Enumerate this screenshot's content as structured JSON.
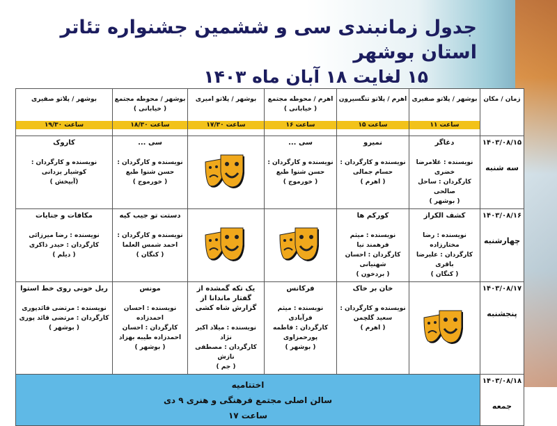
{
  "title": {
    "line1": "جدول زمانبندی سی و ششمین جشنواره تئاتر استان بوشهر",
    "line2": "۱۵ لغایت ۱۸ آبان ماه ۱۴۰۳"
  },
  "header": {
    "corner": "زمان / مکان",
    "columns": [
      {
        "place": "بوشهر / پلاتو صفیری",
        "sub": "",
        "time": "ساعت ۱۱"
      },
      {
        "place": "اهرم / پلاتو تنگسیرون",
        "sub": "",
        "time": "ساعت ۱۵"
      },
      {
        "place": "اهرم / محوطه مجتمع",
        "sub": "( خیابانی )",
        "time": "ساعت ۱۶"
      },
      {
        "place": "بوشهر / پلاتو امیری",
        "sub": "",
        "time": "ساعت ۱۷/۳۰"
      },
      {
        "place": "بوشهر / محوطه مجتمع",
        "sub": "( خیابانی )",
        "time": "ساعت ۱۸/۳۰"
      },
      {
        "place": "بوشهر / پلاتو صفیری",
        "sub": "",
        "time": "ساعت ۱۹/۳۰"
      }
    ]
  },
  "rows": [
    {
      "date": "۱۴۰۳/۰۸/۱۵",
      "day": "سه شنبه",
      "cells": [
        {
          "name": "دغاگر",
          "l1": "نویسنده : غلامرضا خضری",
          "l2": "کارگردان : ساحل صالحی",
          "l3": "( بوشهر )"
        },
        {
          "name": "نمیرو",
          "l1": "نویسنده و کارگردان :",
          "l2": "حسام جمالی",
          "l3": "( اهرم )"
        },
        {
          "name": "سی ...",
          "l1": "نویسنده و کارگردان :",
          "l2": "حسن شنوا طبع",
          "l3": "( خورموج )"
        },
        {
          "mask": true
        },
        {
          "name": "سی ...",
          "l1": "نویسنده و کارگردان :",
          "l2": "حسن شنوا طبع",
          "l3": "( خورموج )"
        },
        {
          "name": "کاروک",
          "l1": "نویسنده و کارگردان :",
          "l2": "کوشیار یزدانی",
          "l3": "(آبپخش )"
        }
      ]
    },
    {
      "date": "۱۴۰۳/۰۸/۱۶",
      "day": "چهارشنبه",
      "cells": [
        {
          "name": "کشف الکراز",
          "l1": "نویسنده : رضا مختارزاده",
          "l2": "کارگردان : علیرضا باقری",
          "l3": "( کنگان )"
        },
        {
          "name": "کورکم ها",
          "l1": "نویسنده : میثم فرهمند نیا",
          "l2": "کارگردان : احسان شهنیانی",
          "l3": "( بردخون )"
        },
        {
          "mask": true
        },
        {
          "mask": true
        },
        {
          "name": "دستت تو جیب کیه",
          "l1": "نویسنده و کارگردان :",
          "l2": "احمد شمس العلما",
          "l3": "( کنگان )"
        },
        {
          "name": "مکافات و جنایات",
          "l1": "نویسنده : رضا میرزائی",
          "l2": "کارگردان : حیدر ذاکری",
          "l3": "( دیلم )"
        }
      ]
    },
    {
      "date": "۱۴۰۳/۰۸/۱۷",
      "day": "پنجشنبه",
      "cells": [
        {
          "mask": true
        },
        {
          "name": "خان بر خاک",
          "l1": "نویسنده و کارگردان :",
          "l2": "سعید گلچمن",
          "l3": "( اهرم )"
        },
        {
          "name": "فرکانس",
          "l1": "نویسنده : میثم فرآبادی",
          "l2": "کارگردان : فاطمه پورحمزاوی",
          "l3": "( بوشهر )"
        },
        {
          "name": "یک تکه گمشده از گفتار ماندانا از گزارش شاه کشی",
          "l1": "نویسنده : میلاد اکبر نژاد",
          "l2": "کارگردان : مصطفی نازش",
          "l3": "( جم )"
        },
        {
          "name": "مونس",
          "l1": "نویسنده : احسان احمدزاده",
          "l2": "کارگردان : احسان احمدزاده طیبه بهزاد",
          "l3": "( بوشهر )"
        },
        {
          "name": "ریل خونی روی خط استوا",
          "l1": "نویسنده : مرتضی قائدپوری",
          "l2": "کارگردان : مرتضی قائد پوری",
          "l3": "( بوشهر )"
        }
      ]
    }
  ],
  "closing": {
    "date": "۱۴۰۳/۰۸/۱۸",
    "day": "جمعه",
    "title": "اختتامیه",
    "venue": "سالن اصلی مجتمع فرهنگی و هنری ۹ دی",
    "time": "ساعت ۱۷"
  },
  "colors": {
    "highlight": "#f2c21a",
    "closing_bg": "#5fb9e6",
    "title": "#1c1d5e",
    "mask": "#f0a81c"
  }
}
